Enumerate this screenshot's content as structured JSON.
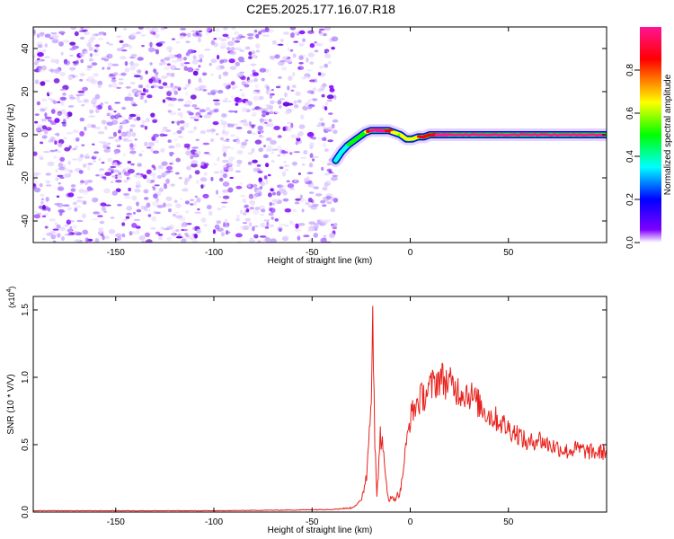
{
  "title": "C2E5.2025.177.16.07.R18",
  "chart_data": [
    {
      "type": "heatmap",
      "name": "spectrogram",
      "xlabel": "Height of straight line (km)",
      "ylabel": "Frequency (Hz)",
      "xlim": [
        -192,
        100
      ],
      "ylim": [
        -50,
        50
      ],
      "xticks": [
        -150,
        -100,
        -50,
        0,
        50
      ],
      "yticks": [
        -40,
        -20,
        0,
        20,
        40
      ],
      "noise_region": {
        "x_from": -192,
        "x_to": -38
      },
      "track": {
        "x": [
          -38,
          -35,
          -32,
          -29,
          -26,
          -23,
          -20,
          -17,
          -14,
          -11,
          -8,
          -5,
          -2,
          1,
          4,
          7,
          10,
          13,
          16,
          20,
          30,
          40,
          50,
          60,
          70,
          80,
          90,
          100
        ],
        "freq": [
          -12,
          -8,
          -5,
          -3,
          -1,
          1,
          2,
          2,
          2,
          2,
          1,
          0,
          -2,
          -2,
          -1,
          -1,
          0,
          0,
          0,
          0,
          0,
          0,
          0,
          0,
          0,
          0,
          0,
          0
        ],
        "amplitude": [
          0.25,
          0.3,
          0.35,
          0.4,
          0.45,
          0.5,
          0.9,
          0.92,
          0.9,
          0.8,
          0.55,
          0.5,
          0.55,
          0.6,
          0.65,
          0.7,
          0.8,
          0.85,
          0.9,
          0.95,
          0.95,
          0.92,
          0.9,
          0.95,
          0.95,
          0.9,
          0.9,
          0.85
        ]
      },
      "colorbar": {
        "label": "Normalized spectral amplitude",
        "range": [
          0.0,
          1.0
        ],
        "ticks": [
          0.0,
          0.2,
          0.4,
          0.6,
          0.8
        ],
        "tick_labels": [
          "0.0",
          "0.2",
          "0.4",
          "0.6",
          "0.8"
        ],
        "colors": [
          "#ffffff",
          "#7f00ff",
          "#0000ff",
          "#00ffff",
          "#00ff00",
          "#ffff00",
          "#ff0000",
          "#ff1493"
        ]
      }
    },
    {
      "type": "line",
      "name": "snr",
      "xlabel": "Height of straight line (km)",
      "ylabel": "SNR (10 * V/V)",
      "scale_note": "(x10",
      "scale_exp": "4",
      "xlim": [
        -192,
        100
      ],
      "ylim": [
        0,
        1.6
      ],
      "xticks": [
        -150,
        -100,
        -50,
        0,
        50
      ],
      "yticks": [
        0.0,
        0.5,
        1.0,
        1.5
      ],
      "ytick_labels": [
        "0.0",
        "0.5",
        "1.0",
        "1.5"
      ],
      "line_color": "#e8211c",
      "x": [
        -192,
        -150,
        -100,
        -60,
        -40,
        -30,
        -25,
        -22,
        -20,
        -19,
        -18,
        -17,
        -16,
        -15,
        -13,
        -11,
        -8,
        -5,
        -2,
        0,
        3,
        6,
        9,
        12,
        15,
        20,
        25,
        30,
        35,
        40,
        45,
        50,
        55,
        60,
        65,
        70,
        75,
        80,
        85,
        90,
        95,
        100
      ],
      "y": [
        0.01,
        0.01,
        0.01,
        0.015,
        0.02,
        0.03,
        0.08,
        0.3,
        0.9,
        1.6,
        0.5,
        0.1,
        0.4,
        0.6,
        0.3,
        0.1,
        0.1,
        0.15,
        0.5,
        0.7,
        0.8,
        0.85,
        0.9,
        0.95,
        1.0,
        0.95,
        0.9,
        0.88,
        0.8,
        0.72,
        0.68,
        0.62,
        0.58,
        0.5,
        0.55,
        0.5,
        0.48,
        0.45,
        0.47,
        0.45,
        0.44,
        0.45
      ]
    }
  ]
}
